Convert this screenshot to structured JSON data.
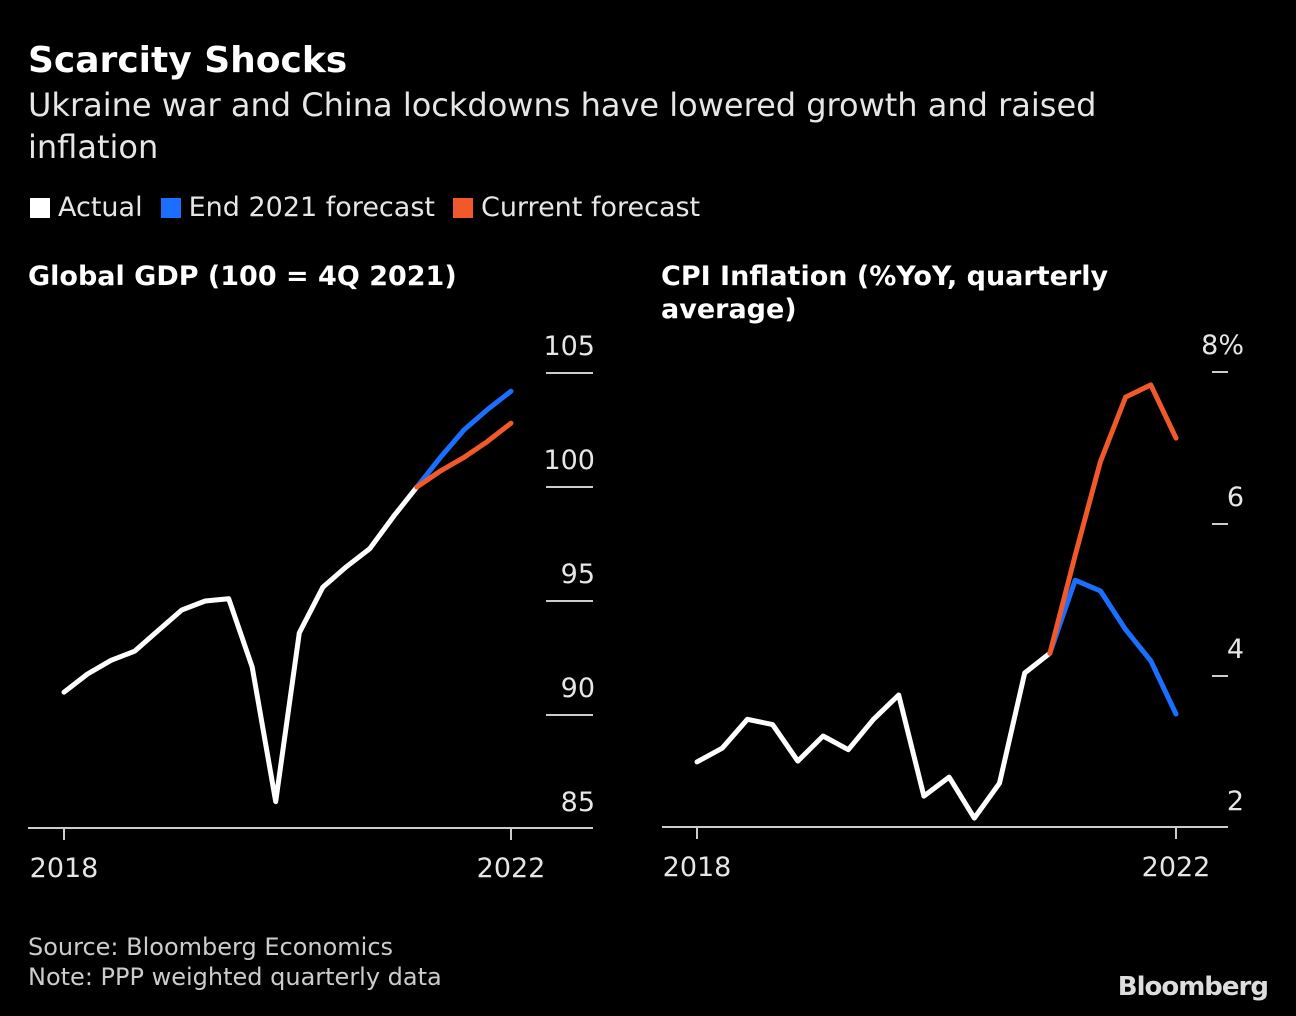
{
  "title": "Scarcity Shocks",
  "subtitle": "Ukraine war and China lockdowns have lowered growth and raised inflation",
  "source": "Source: Bloomberg Economics",
  "note": "Note: PPP weighted quarterly data",
  "brand": "Bloomberg",
  "chart_data": [
    {
      "type": "line",
      "title": "Global GDP (100 = 4Q 2021)",
      "categories": [
        "2018",
        null,
        null,
        null,
        null,
        null,
        null,
        null,
        null,
        null,
        null,
        null,
        null,
        null,
        null,
        null,
        null,
        null,
        null,
        "2022"
      ],
      "series": [
        {
          "name": "Actual",
          "color": "#ffffff",
          "values": [
            91.0,
            91.8,
            92.4,
            92.8,
            93.7,
            94.6,
            95.0,
            95.1,
            92.1,
            86.2,
            93.6,
            95.6,
            96.5,
            97.3,
            98.7,
            100.0,
            null,
            null,
            null,
            null
          ]
        },
        {
          "name": "End 2021 forecast",
          "color": "#1a6fff",
          "values": [
            null,
            null,
            null,
            null,
            null,
            null,
            null,
            null,
            null,
            null,
            null,
            null,
            null,
            null,
            null,
            100.0,
            101.3,
            102.5,
            103.4,
            104.2
          ]
        },
        {
          "name": "Current forecast",
          "color": "#f2592a",
          "values": [
            null,
            null,
            null,
            null,
            null,
            null,
            null,
            null,
            null,
            null,
            null,
            null,
            null,
            null,
            null,
            100.0,
            100.7,
            101.3,
            102.0,
            102.8
          ]
        }
      ],
      "ylim": [
        85,
        105
      ],
      "yticks": [
        105,
        100,
        95,
        90,
        85
      ]
    },
    {
      "type": "line",
      "title": "CPI Inflation (%YoY, quarterly average)",
      "categories": [
        "2018",
        null,
        null,
        null,
        null,
        null,
        null,
        null,
        null,
        null,
        null,
        null,
        null,
        null,
        null,
        null,
        null,
        null,
        null,
        "2022"
      ],
      "series": [
        {
          "name": "Actual",
          "color": "#ffffff",
          "values": [
            2.87,
            3.05,
            3.43,
            3.36,
            2.88,
            3.21,
            3.03,
            3.43,
            3.75,
            2.42,
            2.67,
            2.13,
            2.59,
            4.04,
            4.3,
            null,
            null,
            null,
            null,
            null
          ]
        },
        {
          "name": "End 2021 forecast",
          "color": "#1a6fff",
          "values": [
            null,
            null,
            null,
            null,
            null,
            null,
            null,
            null,
            null,
            null,
            null,
            null,
            null,
            null,
            4.3,
            5.26,
            5.12,
            4.61,
            4.2,
            3.5
          ]
        },
        {
          "name": "Current forecast",
          "color": "#f2592a",
          "values": [
            null,
            null,
            null,
            null,
            null,
            null,
            null,
            null,
            null,
            null,
            null,
            null,
            null,
            null,
            4.3,
            5.59,
            6.82,
            7.67,
            7.83,
            7.13
          ]
        }
      ],
      "ylim": [
        2,
        8
      ],
      "yticks": [
        {
          "value": 8,
          "label": "8%"
        },
        6,
        4,
        2
      ]
    }
  ]
}
